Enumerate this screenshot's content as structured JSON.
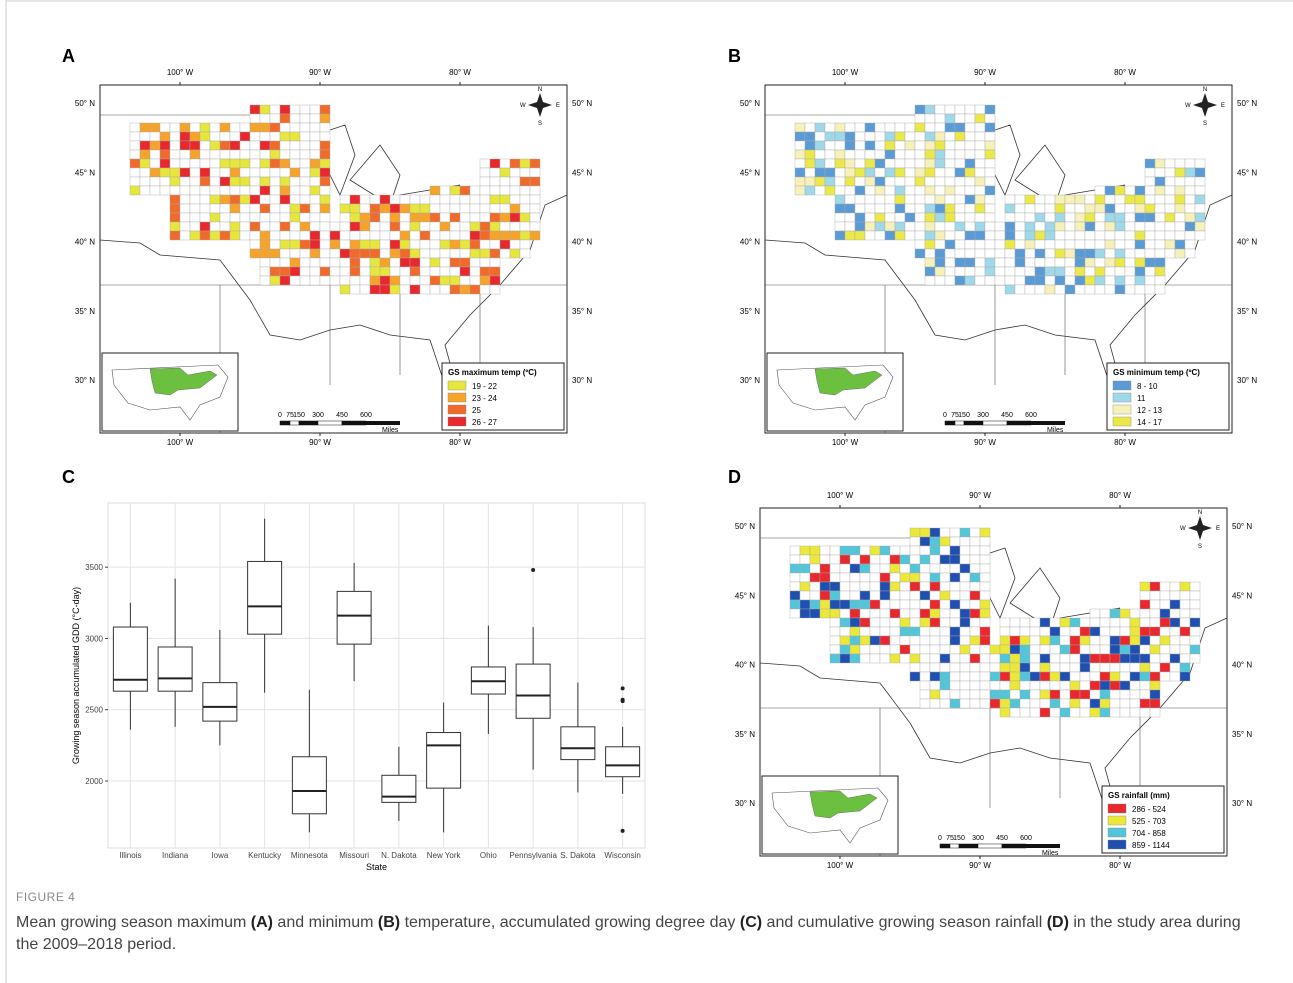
{
  "panel_labels": [
    "A",
    "B",
    "C",
    "D"
  ],
  "map_axes": {
    "lon": [
      "100° W",
      "90° W",
      "80° W"
    ],
    "lat": [
      "50° N",
      "45° N",
      "40° N",
      "35° N",
      "30° N"
    ]
  },
  "scale_bar": [
    "0",
    "75",
    "150",
    "300",
    "450",
    "600",
    "Miles"
  ],
  "compass": {
    "n": "N",
    "s": "S",
    "e": "E",
    "w": "W"
  },
  "maps": [
    {
      "panel": "A",
      "legend_title": "GS maximum temp (ºC)",
      "legend": [
        {
          "label": "19 - 22",
          "color": "#e6e63c"
        },
        {
          "label": "23 - 24",
          "color": "#f6a32a"
        },
        {
          "label": "25",
          "color": "#f06a2a"
        },
        {
          "label": "26 - 27",
          "color": "#e8282c"
        }
      ]
    },
    {
      "panel": "B",
      "legend_title": "GS minimum temp (ºC)",
      "legend": [
        {
          "label": "8 - 10",
          "color": "#5b9bd5"
        },
        {
          "label": "11",
          "color": "#9fd8e8"
        },
        {
          "label": "12 - 13",
          "color": "#f6f1b8"
        },
        {
          "label": "14 - 17",
          "color": "#ebe84a"
        }
      ]
    },
    {
      "panel": "D",
      "legend_title": "GS rainfall (mm)",
      "legend": [
        {
          "label": "286 - 524",
          "color": "#e8282c"
        },
        {
          "label": "525 - 703",
          "color": "#ebe83a"
        },
        {
          "label": "704 - 858",
          "color": "#52c6d8"
        },
        {
          "label": "859 - 1144",
          "color": "#1f4fb0"
        }
      ]
    }
  ],
  "chart_data": {
    "type": "box",
    "panel": "C",
    "x_label": "State",
    "y_label": "Growing season accumulated GDD (°C-day)",
    "categories": [
      "Illinois",
      "Indiana",
      "Iowa",
      "Kentucky",
      "Minnesota",
      "Missouri",
      "N. Dakota",
      "New York",
      "Ohio",
      "Pennsylvania",
      "S. Dakota",
      "Wisconsin"
    ],
    "boxes": [
      {
        "min": 2360,
        "q1": 2630,
        "median": 2710,
        "q3": 3080,
        "max": 3250
      },
      {
        "min": 2380,
        "q1": 2630,
        "median": 2720,
        "q3": 2940,
        "max": 3420
      },
      {
        "min": 2250,
        "q1": 2420,
        "median": 2520,
        "q3": 2690,
        "max": 3060
      },
      {
        "min": 2620,
        "q1": 3030,
        "median": 3225,
        "q3": 3540,
        "max": 3840
      },
      {
        "min": 1640,
        "q1": 1770,
        "median": 1930,
        "q3": 2170,
        "max": 2640
      },
      {
        "min": 2700,
        "q1": 2960,
        "median": 3160,
        "q3": 3330,
        "max": 3530
      },
      {
        "min": 1720,
        "q1": 1850,
        "median": 1890,
        "q3": 2040,
        "max": 2240
      },
      {
        "min": 1640,
        "q1": 1950,
        "median": 2250,
        "q3": 2340,
        "max": 2550
      },
      {
        "min": 2330,
        "q1": 2610,
        "median": 2700,
        "q3": 2800,
        "max": 3090
      },
      {
        "min": 2080,
        "q1": 2440,
        "median": 2600,
        "q3": 2820,
        "max": 3080,
        "outliers": [
          3480
        ]
      },
      {
        "min": 1920,
        "q1": 2150,
        "median": 2230,
        "q3": 2380,
        "max": 2690
      },
      {
        "min": 1910,
        "q1": 2030,
        "median": 2110,
        "q3": 2240,
        "max": 2380,
        "outliers": [
          2650,
          2570,
          2560,
          1650
        ]
      }
    ],
    "ylim": [
      1530,
      3950
    ],
    "yticks": [
      2000,
      2500,
      3000,
      3500
    ],
    "grid": true
  },
  "figure_label": "FIGURE 4",
  "caption": [
    "Mean growing season maximum ",
    "(A)",
    " and minimum ",
    "(B)",
    " temperature, accumulated growing degree day ",
    "(C)",
    " and cumulative growing season rainfall ",
    "(D)",
    " in the study area during the 2009–2018 period."
  ]
}
